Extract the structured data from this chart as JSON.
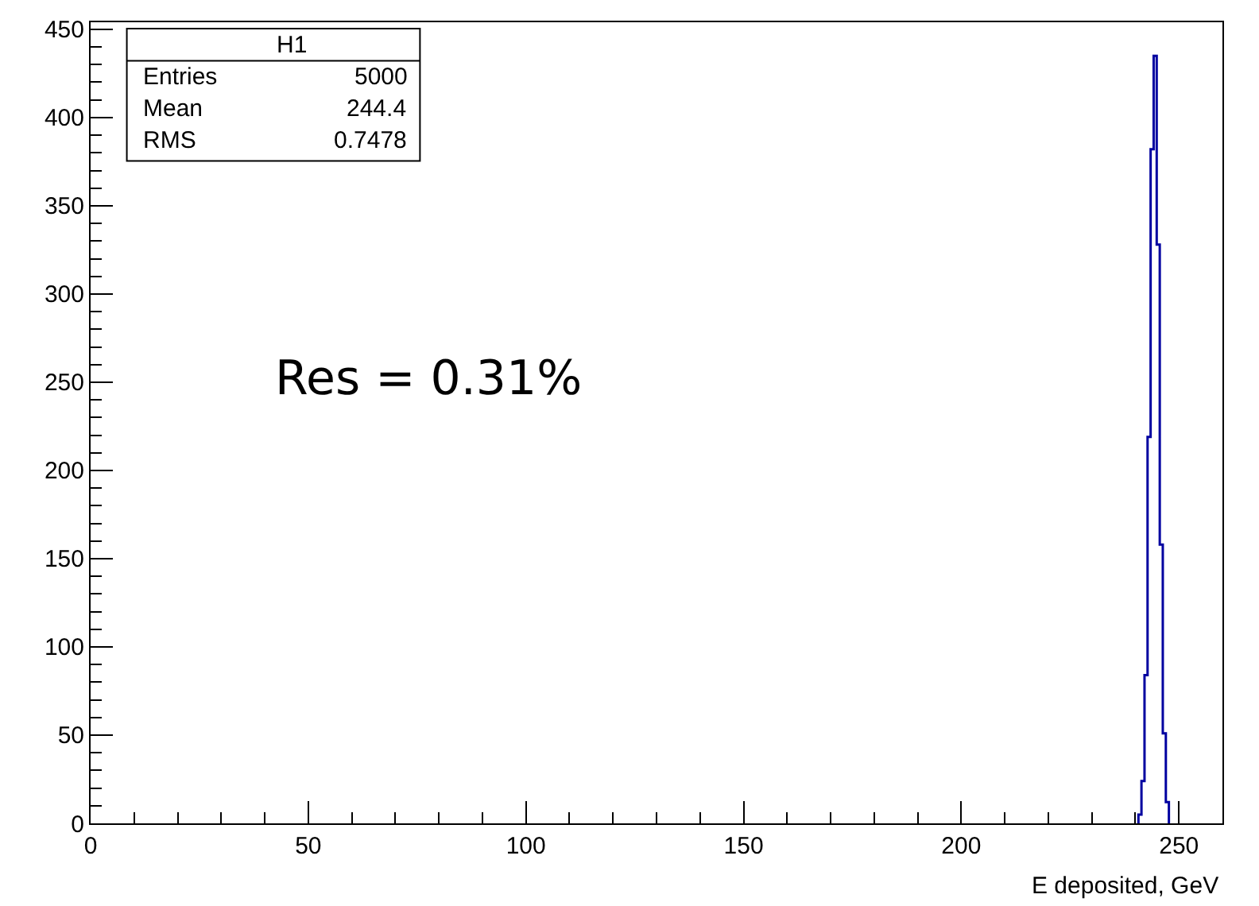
{
  "chart_data": {
    "type": "histogram",
    "xlabel": "E deposited, GeV",
    "bins": [
      240.7,
      241.4,
      242.1,
      242.8,
      243.5,
      244.2,
      244.9,
      245.6,
      246.3,
      247.0,
      247.7
    ],
    "values": [
      5,
      24,
      84,
      219,
      382,
      435,
      328,
      158,
      51,
      12
    ],
    "color": "#0000a0",
    "xlim": [
      0,
      260
    ],
    "xticks": [
      0,
      50,
      100,
      150,
      200,
      250
    ],
    "ylim": [
      0,
      454
    ],
    "yticks": [
      0,
      50,
      100,
      150,
      200,
      250,
      300,
      350,
      400,
      450
    ],
    "annotations": [
      "H1",
      "Entries",
      "5000",
      "Mean",
      "244.4",
      "RMS",
      "0.7478",
      "Res = 0.31%"
    ]
  }
}
